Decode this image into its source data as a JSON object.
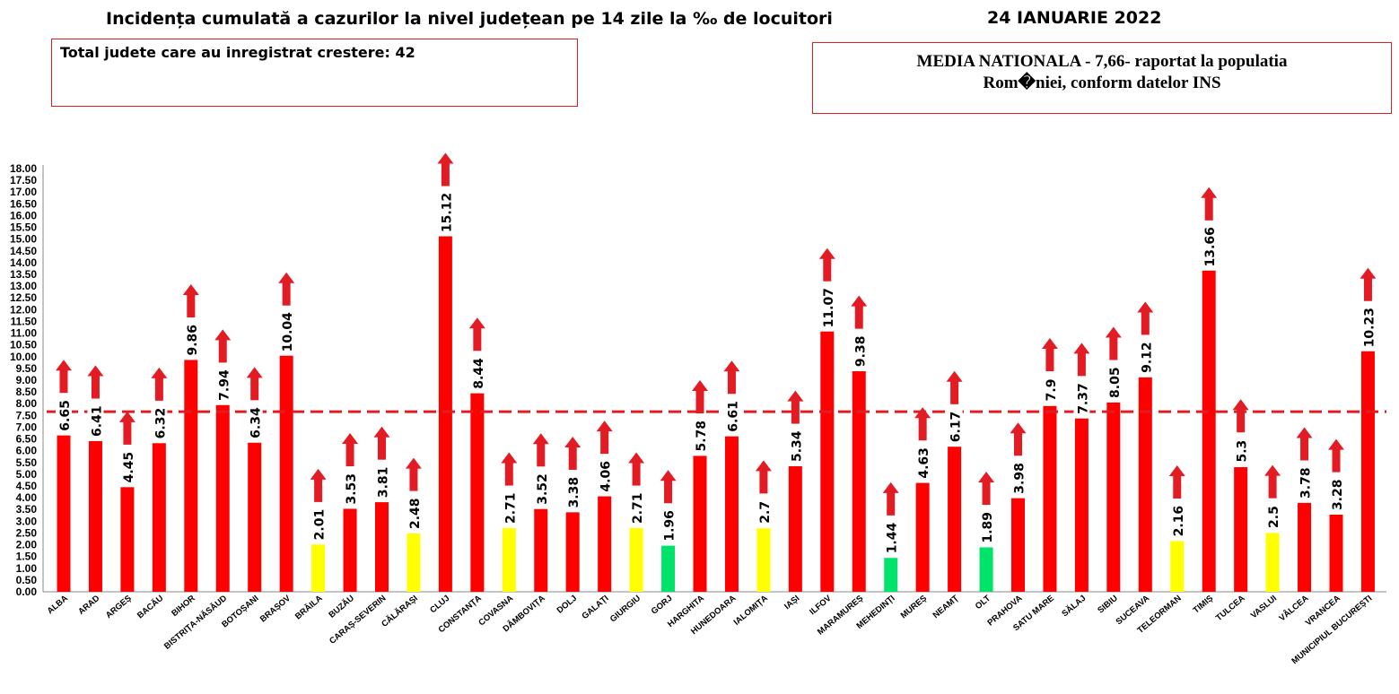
{
  "title": "Incidența cumulată a cazurilor la nivel județean pe 14 zile la ‰ de locuitori",
  "date": "24 IANUARIE 2022",
  "info_left": "Total judete care au inregistrat crestere: 42",
  "info_right_line1": "MEDIA NATIONALA - 7,66-  raportat la populatia",
  "info_right_line2": "Rom�niei, conform datelor INS",
  "colors": {
    "red": "#ff0000",
    "yellow": "#ffff00",
    "green": "#00e36b",
    "reference_line": "#e31b23",
    "arrow": "#e31b23",
    "box_border": "#e31b23"
  },
  "chart_data": {
    "type": "bar",
    "title": "Incidența cumulată a cazurilor la nivel județean pe 14 zile la ‰ de locuitori",
    "xlabel": "",
    "ylabel": "",
    "ylim": [
      0,
      18
    ],
    "ytick_step": 0.5,
    "ytick_labels": [
      "0.00",
      "0.50",
      "1.00",
      "1.50",
      "2.00",
      "2.50",
      "3.00",
      "3.50",
      "4.00",
      "4.50",
      "5.00",
      "5.50",
      "6.00",
      "6.50",
      "7.00",
      "7.50",
      "8.00",
      "8.50",
      "9.00",
      "9.50",
      "10.00",
      "10.50",
      "11.00",
      "11.50",
      "12.00",
      "12.50",
      "13.00",
      "13.50",
      "14.00",
      "14.50",
      "15.00",
      "15.50",
      "16.00",
      "16.50",
      "17.00",
      "17.50",
      "18.00"
    ],
    "grid": false,
    "reference_line": 7.66,
    "categories": [
      "ALBA",
      "ARAD",
      "ARGEȘ",
      "BACĂU",
      "BIHOR",
      "BISTRIȚA-NĂSĂUD",
      "BOTOȘANI",
      "BRAȘOV",
      "BRĂILA",
      "BUZĂU",
      "CARAȘ-SEVERIN",
      "CĂLĂRAȘI",
      "CLUJ",
      "CONSTANȚA",
      "COVASNA",
      "DÂMBOVIȚA",
      "DOLJ",
      "GALAȚI",
      "GIURGIU",
      "GORJ",
      "HARGHITA",
      "HUNEDOARA",
      "IALOMIȚA",
      "IAȘI",
      "ILFOV",
      "MARAMUREȘ",
      "MEHEDINȚI",
      "MUREȘ",
      "NEAMȚ",
      "OLT",
      "PRAHOVA",
      "SATU MARE",
      "SĂLAJ",
      "SIBIU",
      "SUCEAVA",
      "TELEORMAN",
      "TIMIȘ",
      "TULCEA",
      "VASLUI",
      "VÂLCEA",
      "VRANCEA",
      "MUNICIPIUL BUCUREȘTI"
    ],
    "values": [
      6.65,
      6.41,
      4.45,
      6.32,
      9.86,
      7.94,
      6.34,
      10.04,
      2.01,
      3.53,
      3.81,
      2.48,
      15.12,
      8.44,
      2.71,
      3.52,
      3.38,
      4.06,
      2.71,
      1.96,
      5.78,
      6.61,
      2.7,
      5.34,
      11.07,
      9.38,
      1.44,
      4.63,
      6.17,
      1.89,
      3.98,
      7.9,
      7.37,
      8.05,
      9.12,
      2.16,
      13.66,
      5.3,
      2.5,
      3.78,
      3.28,
      10.23
    ],
    "value_labels": [
      "6.65",
      "6.41",
      "4.45",
      "6.32",
      "9.86",
      "7.94",
      "6.34",
      "10.04",
      "2.01",
      "3.53",
      "3.81",
      "2.48",
      "15.12",
      "8.44",
      "2.71",
      "3.52",
      "3.38",
      "4.06",
      "2.71",
      "1.96",
      "5.78",
      "6.61",
      "2.7",
      "5.34",
      "11.07",
      "9.38",
      "1.44",
      "4.63",
      "6.17",
      "1.89",
      "3.98",
      "7.9",
      "7.37",
      "8.05",
      "9.12",
      "2.16",
      "13.66",
      "5.3",
      "2.5",
      "3.78",
      "3.28",
      "10.23"
    ],
    "bar_colors": [
      "red",
      "red",
      "red",
      "red",
      "red",
      "red",
      "red",
      "red",
      "yellow",
      "red",
      "red",
      "yellow",
      "red",
      "red",
      "yellow",
      "red",
      "red",
      "red",
      "yellow",
      "green",
      "red",
      "red",
      "yellow",
      "red",
      "red",
      "red",
      "green",
      "red",
      "red",
      "green",
      "red",
      "red",
      "red",
      "red",
      "red",
      "yellow",
      "red",
      "red",
      "yellow",
      "red",
      "red",
      "red"
    ],
    "trend": [
      "up",
      "up",
      "up",
      "up",
      "up",
      "up",
      "up",
      "up",
      "up",
      "up",
      "up",
      "up",
      "up",
      "up",
      "up",
      "up",
      "up",
      "up",
      "up",
      "up",
      "up",
      "up",
      "up",
      "up",
      "up",
      "up",
      "up",
      "up",
      "up",
      "up",
      "up",
      "up",
      "up",
      "up",
      "up",
      "up",
      "up",
      "up",
      "up",
      "up",
      "up",
      "up"
    ]
  }
}
